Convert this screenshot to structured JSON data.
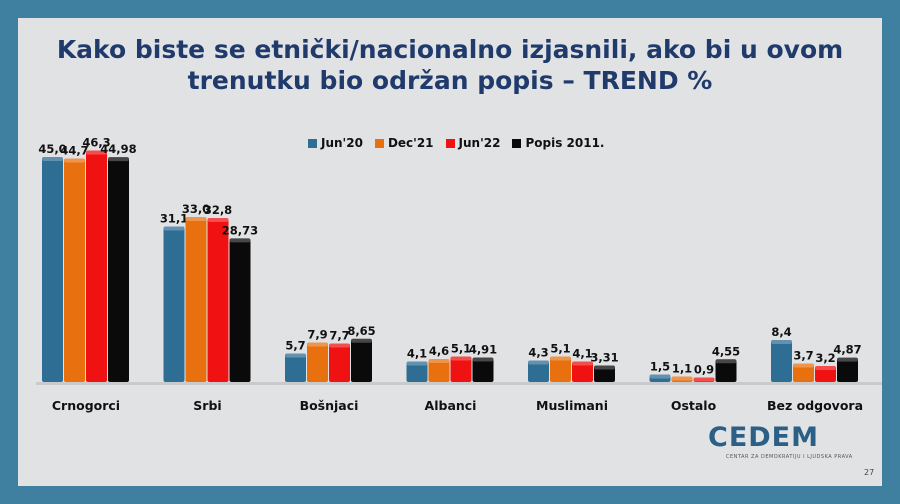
{
  "title_line1": "Kako biste se etnički/nacionalno izjasnili, ako bi u ovom",
  "title_line2": "trenutku bio održan popis – TREND %",
  "logo_text": "CEDEM",
  "logo_subtitle": "CENTAR ZA DEMOKRATIJU I LJUDSKA PRAVA",
  "page_number": "27",
  "chart_data": {
    "type": "bar",
    "categories": [
      "Crnogorci",
      "Srbi",
      "Bošnjaci",
      "Albanci",
      "Muslimani",
      "Ostalo",
      "Bez odgovora"
    ],
    "series": [
      {
        "name": "Jun'20",
        "color": "#2e6e94",
        "values": [
          45.0,
          31.1,
          5.7,
          4.1,
          4.3,
          1.5,
          8.4
        ],
        "labels": [
          "45,0",
          "31,1",
          "5,7",
          "4,1",
          "4,3",
          "1,5",
          "8,4"
        ]
      },
      {
        "name": "Dec'21",
        "color": "#e8700f",
        "values": [
          44.7,
          33.0,
          7.9,
          4.6,
          5.1,
          1.1,
          3.7
        ],
        "labels": [
          "44,7",
          "33,0",
          "7,9",
          "4,6",
          "5,1",
          "1,1",
          "3,7"
        ]
      },
      {
        "name": "Jun'22",
        "color": "#f01212",
        "values": [
          46.3,
          32.8,
          7.7,
          5.1,
          4.1,
          0.9,
          3.2
        ],
        "labels": [
          "46,3",
          "32,8",
          "7,7",
          "5,1",
          "4,1",
          "0,9",
          "3,2"
        ]
      },
      {
        "name": "Popis 2011.",
        "color": "#0a0a0a",
        "values": [
          44.98,
          28.73,
          8.65,
          4.91,
          3.31,
          4.55,
          4.87
        ],
        "labels": [
          "44,98",
          "28,73",
          "8,65",
          "4,91",
          "3,31",
          "4,55",
          "4,87"
        ]
      }
    ],
    "ylim": [
      0,
      48
    ],
    "legend_position": "top-center",
    "grid": false
  }
}
